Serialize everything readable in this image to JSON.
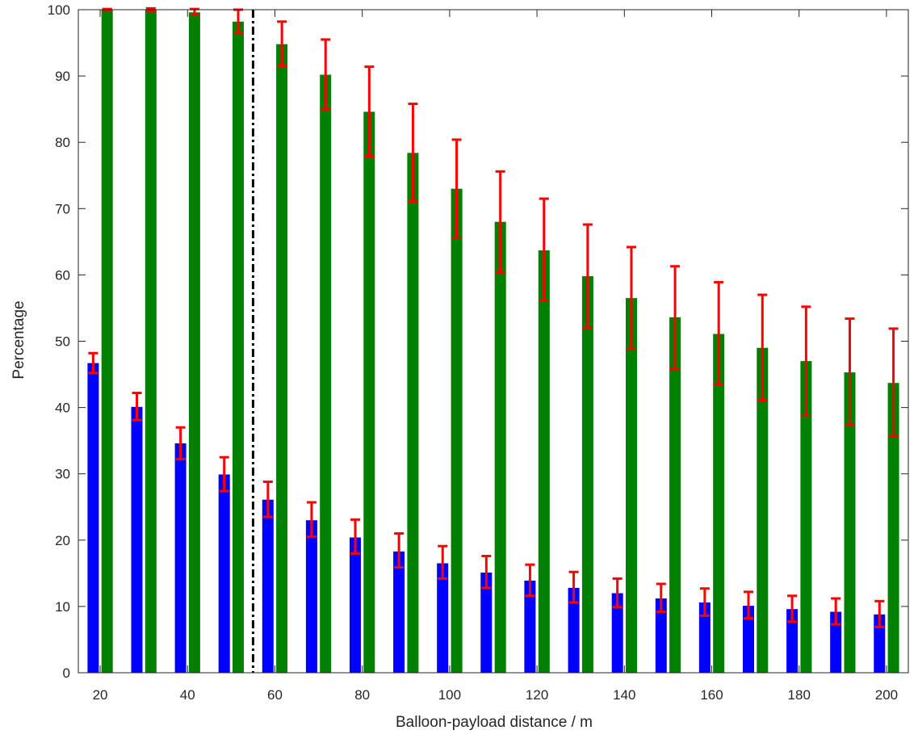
{
  "chart_data": {
    "type": "bar",
    "xlabel": "Balloon-payload distance / m",
    "ylabel": "Percentage",
    "xlim": [
      15,
      205
    ],
    "ylim": [
      0,
      100
    ],
    "x_ticks": [
      20,
      40,
      60,
      80,
      100,
      120,
      140,
      160,
      180,
      200
    ],
    "y_ticks": [
      0,
      10,
      20,
      30,
      40,
      50,
      60,
      70,
      80,
      90,
      100
    ],
    "x": [
      20,
      30,
      40,
      50,
      60,
      70,
      80,
      90,
      100,
      110,
      120,
      130,
      140,
      150,
      160,
      170,
      180,
      190,
      200
    ],
    "series": [
      {
        "color": "#0000ff",
        "values": [
          46.7,
          40.1,
          34.6,
          29.9,
          26.1,
          23.0,
          20.4,
          18.3,
          16.5,
          15.1,
          13.9,
          12.8,
          12.0,
          11.2,
          10.6,
          10.1,
          9.6,
          9.2,
          8.8
        ],
        "err_low": [
          1.5,
          2.0,
          2.4,
          2.5,
          2.6,
          2.5,
          2.4,
          2.4,
          2.3,
          2.3,
          2.3,
          2.2,
          2.1,
          2.0,
          2.0,
          1.9,
          1.9,
          1.9,
          1.9
        ],
        "err_high": [
          1.5,
          2.1,
          2.4,
          2.6,
          2.7,
          2.7,
          2.7,
          2.7,
          2.6,
          2.5,
          2.4,
          2.4,
          2.2,
          2.2,
          2.1,
          2.1,
          2.0,
          2.0,
          2.0
        ]
      },
      {
        "color": "#008000",
        "values": [
          100.0,
          100.0,
          99.6,
          98.2,
          94.8,
          90.2,
          84.6,
          78.4,
          73.0,
          68.0,
          63.7,
          59.8,
          56.5,
          53.6,
          51.1,
          49.0,
          47.0,
          45.3,
          43.7
        ],
        "err_low": [
          0.1,
          0.2,
          0.4,
          1.7,
          3.3,
          5.2,
          6.7,
          7.3,
          7.4,
          7.6,
          7.6,
          7.8,
          7.7,
          7.8,
          7.6,
          7.9,
          8.2,
          7.9,
          8.0
        ],
        "err_high": [
          0.1,
          0.2,
          0.5,
          1.8,
          3.4,
          5.3,
          6.8,
          7.4,
          7.4,
          7.6,
          7.8,
          7.8,
          7.7,
          7.7,
          7.8,
          8.0,
          8.2,
          8.1,
          8.2
        ]
      }
    ],
    "error_bar_color": "#ff0000",
    "bar_offset_m": 1.6,
    "threshold_line": {
      "x": 55,
      "style": "dash-dot",
      "color": "#000000"
    },
    "grid": false,
    "legend": "none"
  }
}
